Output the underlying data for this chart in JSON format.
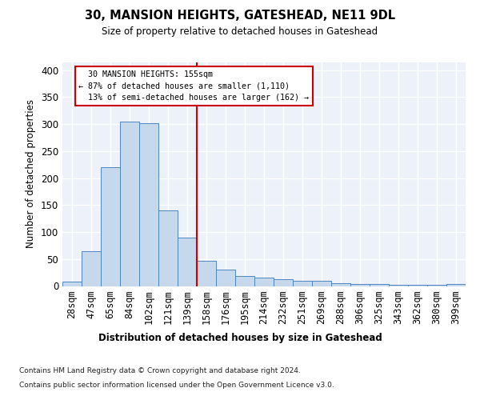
{
  "title": "30, MANSION HEIGHTS, GATESHEAD, NE11 9DL",
  "subtitle": "Size of property relative to detached houses in Gateshead",
  "xlabel": "Distribution of detached houses by size in Gateshead",
  "ylabel": "Number of detached properties",
  "bar_color": "#c6d9ec",
  "bar_edge_color": "#4f86c0",
  "background_color": "#edf2fa",
  "grid_color": "#ffffff",
  "categories": [
    "28sqm",
    "47sqm",
    "65sqm",
    "84sqm",
    "102sqm",
    "121sqm",
    "139sqm",
    "158sqm",
    "176sqm",
    "195sqm",
    "214sqm",
    "232sqm",
    "251sqm",
    "269sqm",
    "288sqm",
    "306sqm",
    "325sqm",
    "343sqm",
    "362sqm",
    "380sqm",
    "399sqm"
  ],
  "values": [
    8,
    64,
    220,
    305,
    302,
    140,
    90,
    46,
    30,
    19,
    15,
    13,
    10,
    10,
    5,
    4,
    4,
    2,
    2,
    2,
    4
  ],
  "property_label": "30 MANSION HEIGHTS: 155sqm",
  "pct_smaller": 87,
  "n_smaller": 1110,
  "pct_larger": 13,
  "n_larger": 162,
  "vline_x_index": 7,
  "vline_color": "#cc0000",
  "annotation_box_edge_color": "#cc0000",
  "yticks": [
    0,
    50,
    100,
    150,
    200,
    250,
    300,
    350,
    400
  ],
  "ylim_max": 415,
  "footnote1": "Contains HM Land Registry data © Crown copyright and database right 2024.",
  "footnote2": "Contains public sector information licensed under the Open Government Licence v3.0."
}
